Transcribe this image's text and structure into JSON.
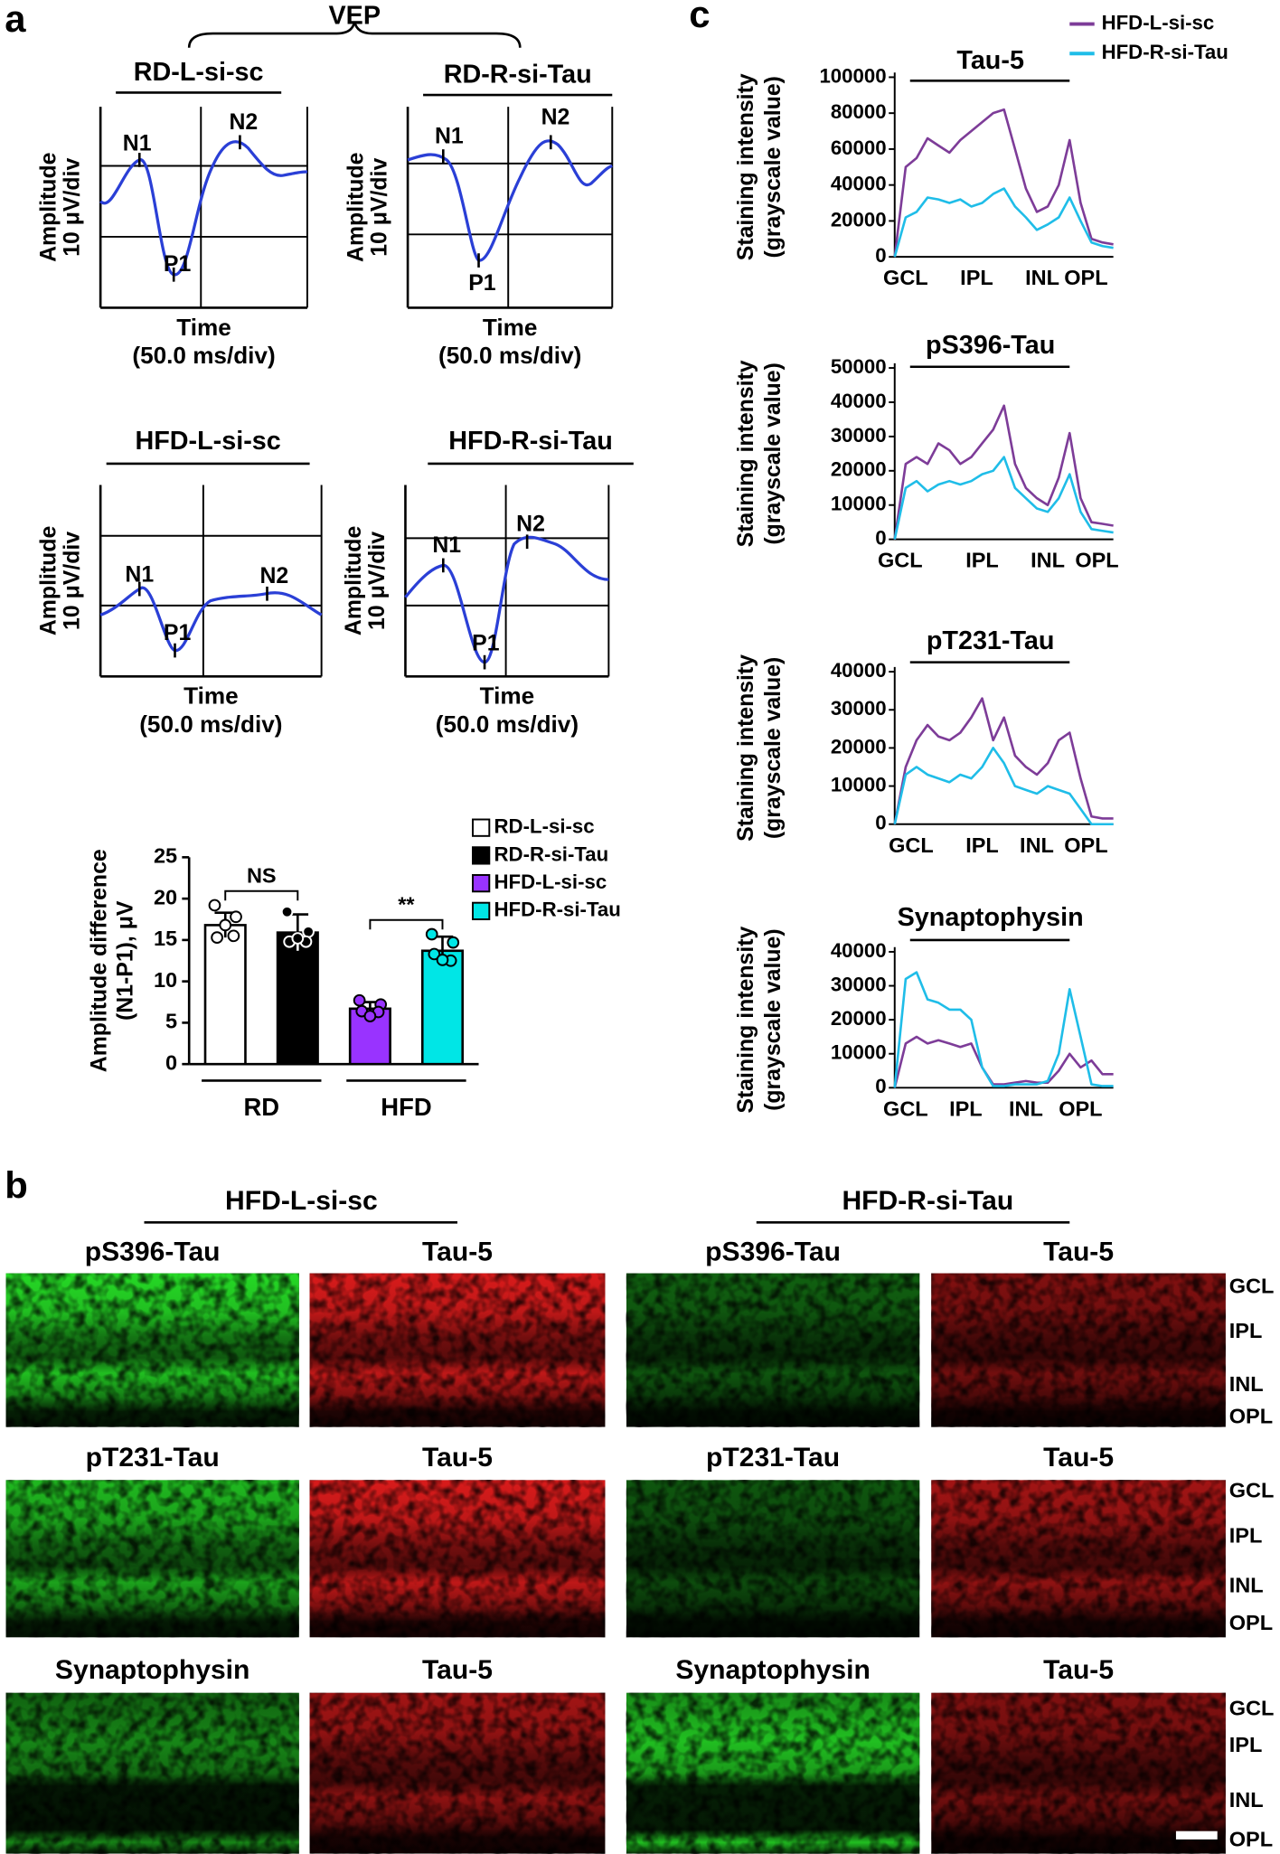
{
  "panel_labels": [
    "a",
    "b",
    "c"
  ],
  "vep": {
    "title": "VEP",
    "panels": [
      {
        "title": "RD-L-si-sc",
        "ylabel": [
          "Amplitude",
          "10 μV/div"
        ],
        "xlabel": [
          "Time",
          "(50.0 ms/div)"
        ],
        "peaks": [
          "N1",
          "P1",
          "N2"
        ]
      },
      {
        "title": "RD-R-si-Tau",
        "ylabel": [
          "Amplitude",
          "10 μV/div"
        ],
        "xlabel": [
          "Time",
          "(50.0 ms/div)"
        ],
        "peaks": [
          "N1",
          "P1",
          "N2"
        ]
      },
      {
        "title": "HFD-L-si-sc",
        "ylabel": [
          "Amplitude",
          "10 μV/div"
        ],
        "xlabel": [
          "Time",
          "(50.0 ms/div)"
        ],
        "peaks": [
          "N1",
          "P1",
          "N2"
        ]
      },
      {
        "title": "HFD-R-si-Tau",
        "ylabel": [
          "Amplitude",
          "10 μV/div"
        ],
        "xlabel": [
          "Time",
          "(50.0 ms/div)"
        ],
        "peaks": [
          "N1",
          "P1",
          "N2"
        ]
      }
    ]
  },
  "chart_data": [
    {
      "type": "bar",
      "ylabel": [
        "Amplitude difference",
        "(N1-P1), μV"
      ],
      "categories": [
        "RD-L-si-sc",
        "RD-R-si-Tau",
        "HFD-L-si-sc",
        "HFD-R-si-Tau"
      ],
      "values": [
        16.8,
        15.9,
        6.7,
        13.7
      ],
      "errors": [
        1.5,
        2.2,
        0.8,
        1.7
      ],
      "points": [
        [
          19.2,
          17.8,
          15.3,
          15.5,
          16.8
        ],
        [
          18.4,
          16.0,
          14.8,
          14.8,
          15.2
        ],
        [
          7.7,
          7.2,
          6.4,
          6.3,
          5.8
        ],
        [
          15.7,
          14.7,
          13.3,
          12.5,
          12.6
        ]
      ],
      "colors": [
        "#ffffff",
        "#000000",
        "#9933ff",
        "#00e6e6"
      ],
      "groups": [
        "RD",
        "HFD"
      ],
      "significance": [
        "NS",
        "**"
      ],
      "ylim": [
        0,
        25
      ],
      "yticks": [
        0,
        5,
        10,
        15,
        20,
        25
      ]
    },
    {
      "type": "line",
      "title": "Tau-5",
      "ylabel": [
        "Staining intensity",
        "(grayscale value)"
      ],
      "x": [
        0,
        2,
        4,
        6,
        8,
        10,
        12,
        14,
        16,
        18,
        20,
        22,
        24,
        26,
        28,
        30,
        32,
        34,
        36,
        38,
        40
      ],
      "xlim": [
        0,
        40
      ],
      "xticks": [
        {
          "value": 2,
          "label": "GCL"
        },
        {
          "value": 15,
          "label": "IPL"
        },
        {
          "value": 27,
          "label": "INL"
        },
        {
          "value": 35,
          "label": "OPL"
        }
      ],
      "ylim": [
        0,
        100000
      ],
      "yticks": [
        0,
        20000,
        40000,
        60000,
        80000,
        100000
      ],
      "series": [
        {
          "name": "HFD-L-si-sc",
          "color": "#7d3c98",
          "values": [
            0,
            50000,
            55000,
            66000,
            62000,
            58000,
            65000,
            70000,
            75000,
            80000,
            82000,
            60000,
            38000,
            25000,
            28000,
            40000,
            65000,
            30000,
            10000,
            8000,
            7000
          ]
        },
        {
          "name": "HFD-R-si-Tau",
          "color": "#1fbde8",
          "values": [
            0,
            22000,
            25000,
            33000,
            32000,
            30000,
            32000,
            28000,
            30000,
            35000,
            38000,
            28000,
            22000,
            15000,
            18000,
            22000,
            33000,
            20000,
            8000,
            6000,
            5000
          ]
        }
      ]
    },
    {
      "type": "line",
      "title": "pS396-Tau",
      "ylabel": [
        "Staining intensity",
        "(grayscale value)"
      ],
      "x": [
        0,
        2,
        4,
        6,
        8,
        10,
        12,
        14,
        16,
        18,
        20,
        22,
        24,
        26,
        28,
        30,
        32,
        34,
        36,
        38,
        40
      ],
      "xlim": [
        0,
        40
      ],
      "xticks": [
        {
          "value": 1,
          "label": "GCL"
        },
        {
          "value": 16,
          "label": "IPL"
        },
        {
          "value": 28,
          "label": "INL"
        },
        {
          "value": 37,
          "label": "OPL"
        }
      ],
      "ylim": [
        0,
        50000
      ],
      "yticks": [
        0,
        10000,
        20000,
        30000,
        40000,
        50000
      ],
      "series": [
        {
          "name": "HFD-L-si-sc",
          "color": "#7d3c98",
          "values": [
            0,
            22000,
            24000,
            22000,
            28000,
            26000,
            22000,
            24000,
            28000,
            32000,
            39000,
            22000,
            15000,
            12000,
            10000,
            18000,
            31000,
            12000,
            5000,
            4500,
            4000
          ]
        },
        {
          "name": "HFD-R-si-Tau",
          "color": "#1fbde8",
          "values": [
            0,
            15000,
            17000,
            14000,
            16000,
            17000,
            16000,
            17000,
            19000,
            20000,
            24000,
            15000,
            12000,
            9000,
            8000,
            12000,
            19000,
            8000,
            3000,
            2500,
            2000
          ]
        }
      ]
    },
    {
      "type": "line",
      "title": "pT231-Tau",
      "ylabel": [
        "Staining intensity",
        "(grayscale value)"
      ],
      "x": [
        0,
        2,
        4,
        6,
        8,
        10,
        12,
        14,
        16,
        18,
        20,
        22,
        24,
        26,
        28,
        30,
        32,
        34,
        36,
        38,
        40
      ],
      "xlim": [
        0,
        40
      ],
      "xticks": [
        {
          "value": 3,
          "label": "GCL"
        },
        {
          "value": 16,
          "label": "IPL"
        },
        {
          "value": 26,
          "label": "INL"
        },
        {
          "value": 35,
          "label": "OPL"
        }
      ],
      "ylim": [
        0,
        40000
      ],
      "yticks": [
        0,
        10000,
        20000,
        30000,
        40000
      ],
      "series": [
        {
          "name": "HFD-L-si-sc",
          "color": "#7d3c98",
          "values": [
            0,
            15000,
            22000,
            26000,
            23000,
            22000,
            24000,
            28000,
            33000,
            22000,
            28000,
            18000,
            15000,
            13000,
            16000,
            22000,
            24000,
            12000,
            2000,
            1500,
            1500
          ]
        },
        {
          "name": "HFD-R-si-Tau",
          "color": "#1fbde8",
          "values": [
            0,
            13000,
            15000,
            13000,
            12000,
            11000,
            13000,
            12000,
            15000,
            20000,
            16000,
            10000,
            9000,
            8000,
            10000,
            9000,
            8000,
            4000,
            0,
            0,
            0
          ]
        }
      ]
    },
    {
      "type": "line",
      "title": "Synaptophysin",
      "ylabel": [
        "Staining intensity",
        "(grayscale value)"
      ],
      "x": [
        0,
        2,
        4,
        6,
        8,
        10,
        12,
        14,
        16,
        18,
        20,
        22,
        24,
        26,
        28,
        30,
        32,
        34,
        36,
        38,
        40
      ],
      "xlim": [
        0,
        40
      ],
      "xticks": [
        {
          "value": 2,
          "label": "GCL"
        },
        {
          "value": 13,
          "label": "IPL"
        },
        {
          "value": 24,
          "label": "INL"
        },
        {
          "value": 34,
          "label": "OPL"
        }
      ],
      "ylim": [
        0,
        40000
      ],
      "yticks": [
        0,
        10000,
        20000,
        30000,
        40000
      ],
      "series": [
        {
          "name": "HFD-L-si-sc",
          "color": "#7d3c98",
          "values": [
            0,
            13000,
            15000,
            13000,
            14000,
            13000,
            12000,
            13000,
            6000,
            1000,
            1000,
            1500,
            2000,
            1500,
            1500,
            5000,
            10000,
            6000,
            8000,
            4000,
            4000
          ]
        },
        {
          "name": "HFD-R-si-Tau",
          "color": "#1fbde8",
          "values": [
            0,
            32000,
            34000,
            26000,
            25000,
            23000,
            23000,
            20000,
            6000,
            500,
            500,
            1000,
            1000,
            1000,
            2000,
            10000,
            29000,
            15000,
            1000,
            500,
            500
          ]
        }
      ]
    }
  ],
  "micrographs": {
    "groups": [
      "HFD-L-si-sc",
      "HFD-R-si-Tau"
    ],
    "rows": [
      [
        "pS396-Tau",
        "Tau-5",
        "pS396-Tau",
        "Tau-5"
      ],
      [
        "pT231-Tau",
        "Tau-5",
        "pT231-Tau",
        "Tau-5"
      ],
      [
        "Synaptophysin",
        "Tau-5",
        "Synaptophysin",
        "Tau-5"
      ]
    ],
    "layers": [
      [
        "GCL",
        "IPL",
        "INL",
        "OPL"
      ],
      [
        "GCL",
        "IPL",
        "INL",
        "OPL"
      ],
      [
        "GCL",
        "IPL",
        "INL",
        "OPL"
      ]
    ]
  }
}
